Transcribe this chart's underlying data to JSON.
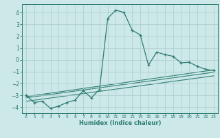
{
  "xlabel": "Humidex (Indice chaleur)",
  "background_color": "#cce8e8",
  "line_color": "#2e7d6e",
  "grid_color": "#aacccc",
  "xlim": [
    -0.5,
    23.5
  ],
  "ylim": [
    -4.5,
    4.7
  ],
  "yticks": [
    -4,
    -3,
    -2,
    -1,
    0,
    1,
    2,
    3,
    4
  ],
  "xticks": [
    0,
    1,
    2,
    3,
    4,
    5,
    6,
    7,
    8,
    9,
    10,
    11,
    12,
    13,
    14,
    15,
    16,
    17,
    18,
    19,
    20,
    21,
    22,
    23
  ],
  "main_series": {
    "x": [
      0,
      1,
      2,
      3,
      4,
      5,
      6,
      7,
      8,
      9,
      10,
      11,
      12,
      13,
      14,
      15,
      16,
      17,
      18,
      19,
      20,
      21,
      22,
      23
    ],
    "y": [
      -3.0,
      -3.6,
      -3.5,
      -4.1,
      -3.9,
      -3.6,
      -3.4,
      -2.6,
      -3.2,
      -2.5,
      3.5,
      4.2,
      4.0,
      2.5,
      2.1,
      -0.45,
      0.65,
      0.45,
      0.3,
      -0.25,
      -0.2,
      -0.55,
      -0.8,
      -0.9
    ]
  },
  "trend_lines": [
    {
      "x": [
        0,
        23
      ],
      "y": [
        -3.1,
        -0.85
      ]
    },
    {
      "x": [
        0,
        23
      ],
      "y": [
        -3.2,
        -1.05
      ]
    },
    {
      "x": [
        0,
        23
      ],
      "y": [
        -3.5,
        -1.35
      ]
    }
  ]
}
